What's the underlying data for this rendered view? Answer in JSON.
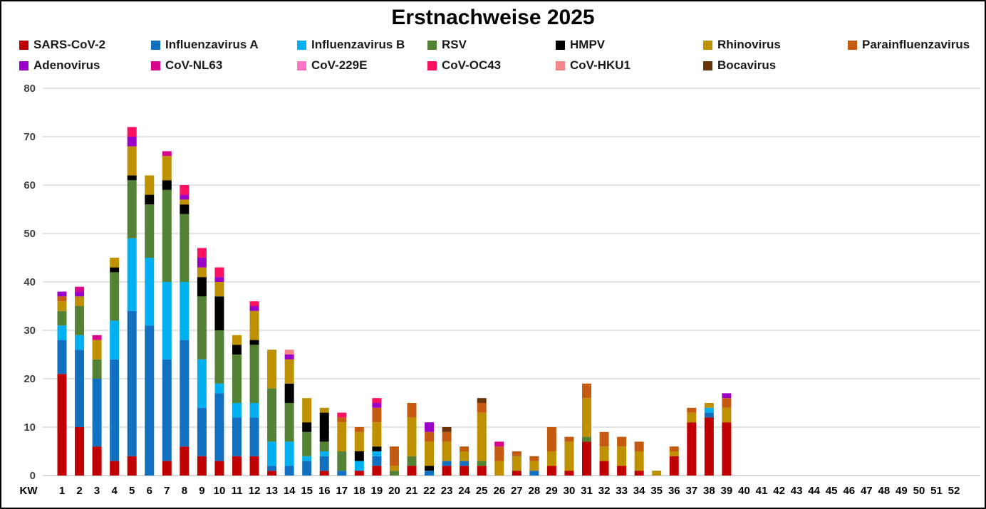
{
  "title": "Erstnachweise 2025",
  "axis": {
    "x_prefix": "KW",
    "x_labels": [
      "1",
      "2",
      "3",
      "4",
      "5",
      "6",
      "7",
      "8",
      "9",
      "10",
      "11",
      "12",
      "13",
      "14",
      "15",
      "16",
      "17",
      "18",
      "19",
      "20",
      "21",
      "22",
      "23",
      "24",
      "25",
      "26",
      "27",
      "28",
      "29",
      "30",
      "31",
      "32",
      "33",
      "34",
      "35",
      "36",
      "37",
      "38",
      "39",
      "40",
      "41",
      "42",
      "43",
      "44",
      "45",
      "46",
      "47",
      "48",
      "49",
      "50",
      "51",
      "52"
    ],
    "y_ticks": [
      0,
      10,
      20,
      30,
      40,
      50,
      60,
      70,
      80
    ]
  },
  "colors": {
    "gridline": "#D9D9D9",
    "axis_line": "#C8C8C8",
    "tick_label": "#404040",
    "frame_border": "#000000"
  },
  "chart_data": {
    "type": "bar",
    "stacked": true,
    "title": "Erstnachweise 2025",
    "xlabel": "KW",
    "ylabel": "",
    "ylim": [
      0,
      80
    ],
    "grid": true,
    "legend_position": "top",
    "categories": [
      1,
      2,
      3,
      4,
      5,
      6,
      7,
      8,
      9,
      10,
      11,
      12,
      13,
      14,
      15,
      16,
      17,
      18,
      19,
      20,
      21,
      22,
      23,
      24,
      25,
      26,
      27,
      28,
      29,
      30,
      31,
      32,
      33,
      34,
      35,
      36,
      37,
      38,
      39,
      40,
      41,
      42,
      43,
      44,
      45,
      46,
      47,
      48,
      49,
      50,
      51,
      52
    ],
    "series": [
      {
        "name": "SARS-CoV-2",
        "color": "#C00000",
        "values": [
          21,
          10,
          6,
          3,
          4,
          0,
          3,
          6,
          4,
          3,
          4,
          4,
          1,
          0,
          0,
          1,
          0,
          1,
          2,
          0,
          2,
          0,
          2,
          2,
          2,
          0,
          1,
          0,
          2,
          1,
          7,
          3,
          2,
          1,
          0,
          4,
          11,
          12,
          11,
          0,
          0,
          0,
          0,
          0,
          0,
          0,
          0,
          0,
          0,
          0,
          0,
          0
        ]
      },
      {
        "name": "Influenzavirus A",
        "color": "#1170C0",
        "values": [
          7,
          16,
          14,
          21,
          30,
          31,
          21,
          22,
          10,
          14,
          8,
          8,
          1,
          2,
          3,
          3,
          1,
          0,
          2,
          0,
          0,
          1,
          1,
          1,
          0,
          0,
          0,
          1,
          0,
          0,
          0,
          0,
          0,
          0,
          0,
          0,
          0,
          1,
          0,
          0,
          0,
          0,
          0,
          0,
          0,
          0,
          0,
          0,
          0,
          0,
          0,
          0
        ]
      },
      {
        "name": "Influenzavirus B",
        "color": "#00B0F0",
        "values": [
          3,
          3,
          0,
          8,
          15,
          14,
          16,
          12,
          10,
          2,
          3,
          3,
          5,
          5,
          1,
          1,
          0,
          2,
          1,
          0,
          0,
          0,
          0,
          0,
          0,
          0,
          0,
          0,
          0,
          0,
          0,
          0,
          0,
          0,
          0,
          0,
          0,
          1,
          0,
          0,
          0,
          0,
          0,
          0,
          0,
          0,
          0,
          0,
          0,
          0,
          0,
          0
        ]
      },
      {
        "name": "RSV",
        "color": "#548235",
        "values": [
          3,
          6,
          4,
          10,
          12,
          11,
          19,
          14,
          13,
          11,
          10,
          12,
          11,
          8,
          5,
          2,
          4,
          0,
          0,
          1,
          2,
          0,
          0,
          0,
          1,
          0,
          0,
          0,
          0,
          0,
          1,
          0,
          0,
          0,
          0,
          0,
          0,
          0,
          0,
          0,
          0,
          0,
          0,
          0,
          0,
          0,
          0,
          0,
          0,
          0,
          0,
          0
        ]
      },
      {
        "name": "HMPV",
        "color": "#000000",
        "values": [
          0,
          0,
          0,
          1,
          1,
          2,
          2,
          2,
          4,
          7,
          2,
          1,
          0,
          4,
          2,
          6,
          0,
          2,
          1,
          0,
          0,
          1,
          0,
          0,
          0,
          0,
          0,
          0,
          0,
          0,
          0,
          0,
          0,
          0,
          0,
          0,
          0,
          0,
          0,
          0,
          0,
          0,
          0,
          0,
          0,
          0,
          0,
          0,
          0,
          0,
          0,
          0
        ]
      },
      {
        "name": "Rhinovirus",
        "color": "#BF9000",
        "values": [
          2,
          2,
          4,
          2,
          6,
          4,
          5,
          1,
          2,
          3,
          2,
          6,
          8,
          5,
          5,
          1,
          6,
          4,
          5,
          1,
          8,
          5,
          4,
          2,
          10,
          3,
          3,
          2,
          3,
          6,
          8,
          3,
          4,
          4,
          1,
          1,
          2,
          1,
          3,
          0,
          0,
          0,
          0,
          0,
          0,
          0,
          0,
          0,
          0,
          0,
          0,
          0
        ]
      },
      {
        "name": "Parainfluenzavirus",
        "color": "#C55A11",
        "values": [
          1,
          0,
          0,
          0,
          0,
          0,
          0,
          0,
          0,
          0,
          0,
          0,
          0,
          0,
          0,
          0,
          1,
          1,
          3,
          4,
          3,
          2,
          2,
          1,
          2,
          3,
          1,
          1,
          5,
          1,
          3,
          3,
          2,
          2,
          0,
          1,
          1,
          0,
          2,
          0,
          0,
          0,
          0,
          0,
          0,
          0,
          0,
          0,
          0,
          0,
          0,
          0
        ]
      },
      {
        "name": "Adenovirus",
        "color": "#9A00C8",
        "values": [
          1,
          1,
          0,
          0,
          2,
          0,
          0,
          1,
          2,
          1,
          0,
          1,
          0,
          1,
          0,
          0,
          0,
          0,
          1,
          0,
          0,
          2,
          0,
          0,
          0,
          0,
          0,
          0,
          0,
          0,
          0,
          0,
          0,
          0,
          0,
          0,
          0,
          0,
          1,
          0,
          0,
          0,
          0,
          0,
          0,
          0,
          0,
          0,
          0,
          0,
          0,
          0
        ]
      },
      {
        "name": "CoV-NL63",
        "color": "#D9058C",
        "values": [
          0,
          1,
          1,
          0,
          0,
          0,
          1,
          0,
          0,
          0,
          0,
          0,
          0,
          0,
          0,
          0,
          0,
          0,
          0,
          0,
          0,
          0,
          0,
          0,
          0,
          1,
          0,
          0,
          0,
          0,
          0,
          0,
          0,
          0,
          0,
          0,
          0,
          0,
          0,
          0,
          0,
          0,
          0,
          0,
          0,
          0,
          0,
          0,
          0,
          0,
          0,
          0
        ]
      },
      {
        "name": "CoV-229E",
        "color": "#FF73C7",
        "values": [
          0,
          0,
          0,
          0,
          0,
          0,
          0,
          0,
          0,
          0,
          0,
          0,
          0,
          0,
          0,
          0,
          0,
          0,
          0,
          0,
          0,
          0,
          0,
          0,
          0,
          0,
          0,
          0,
          0,
          0,
          0,
          0,
          0,
          0,
          0,
          0,
          0,
          0,
          0,
          0,
          0,
          0,
          0,
          0,
          0,
          0,
          0,
          0,
          0,
          0,
          0,
          0
        ]
      },
      {
        "name": "CoV-OC43",
        "color": "#FB115F",
        "values": [
          0,
          0,
          0,
          0,
          2,
          0,
          0,
          2,
          2,
          2,
          0,
          1,
          0,
          0,
          0,
          0,
          1,
          0,
          1,
          0,
          0,
          0,
          0,
          0,
          0,
          0,
          0,
          0,
          0,
          0,
          0,
          0,
          0,
          0,
          0,
          0,
          0,
          0,
          0,
          0,
          0,
          0,
          0,
          0,
          0,
          0,
          0,
          0,
          0,
          0,
          0,
          0
        ]
      },
      {
        "name": "CoV-HKU1",
        "color": "#F4878A",
        "values": [
          0,
          0,
          0,
          0,
          0,
          0,
          0,
          0,
          0,
          0,
          0,
          0,
          0,
          1,
          0,
          0,
          0,
          0,
          0,
          0,
          0,
          0,
          0,
          0,
          0,
          0,
          0,
          0,
          0,
          0,
          0,
          0,
          0,
          0,
          0,
          0,
          0,
          0,
          0,
          0,
          0,
          0,
          0,
          0,
          0,
          0,
          0,
          0,
          0,
          0,
          0,
          0
        ]
      },
      {
        "name": "Bocavirus",
        "color": "#6B3408",
        "values": [
          0,
          0,
          0,
          0,
          0,
          0,
          0,
          0,
          0,
          0,
          0,
          0,
          0,
          0,
          0,
          0,
          0,
          0,
          0,
          0,
          0,
          0,
          1,
          0,
          1,
          0,
          0,
          0,
          0,
          0,
          0,
          0,
          0,
          0,
          0,
          0,
          0,
          0,
          0,
          0,
          0,
          0,
          0,
          0,
          0,
          0,
          0,
          0,
          0,
          0,
          0,
          0
        ]
      }
    ]
  }
}
